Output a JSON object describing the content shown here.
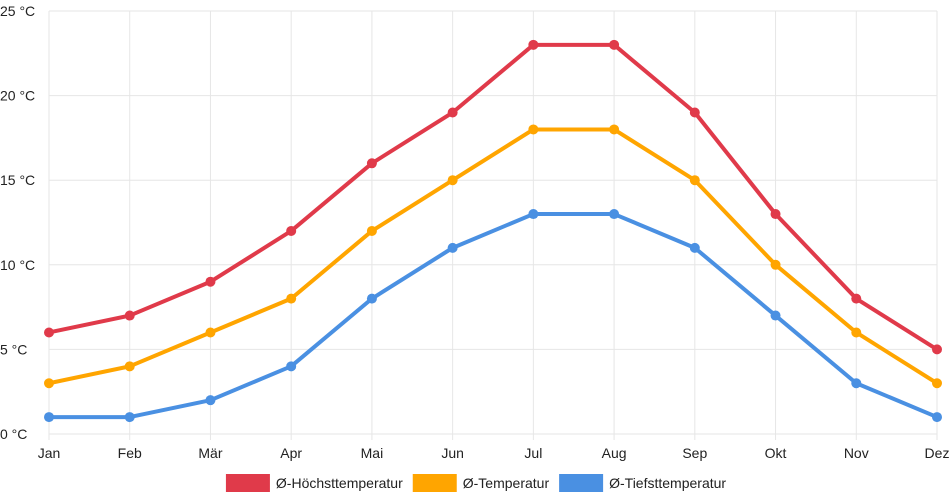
{
  "chart_data": {
    "type": "line",
    "title": "",
    "xlabel": "",
    "ylabel": "",
    "categories": [
      "Jan",
      "Feb",
      "Mär",
      "Apr",
      "Mai",
      "Jun",
      "Jul",
      "Aug",
      "Sep",
      "Okt",
      "Nov",
      "Dez"
    ],
    "ylim": [
      0,
      25
    ],
    "yticks": [
      0,
      5,
      10,
      15,
      20,
      25
    ],
    "y_unit": " °C",
    "grid": true,
    "legend_position": "bottom",
    "series": [
      {
        "name": "Ø-Höchsttemperatur",
        "color": "#e03a4a",
        "values": [
          6,
          7,
          9,
          12,
          16,
          19,
          23,
          23,
          19,
          13,
          8,
          5
        ]
      },
      {
        "name": "Ø-Temperatur",
        "color": "#ffa500",
        "values": [
          3,
          4,
          6,
          8,
          12,
          15,
          18,
          18,
          15,
          10,
          6,
          3
        ]
      },
      {
        "name": "Ø-Tiefsttemperatur",
        "color": "#4a90e2",
        "values": [
          1,
          1,
          2,
          4,
          8,
          11,
          13,
          13,
          11,
          7,
          3,
          1
        ]
      }
    ]
  }
}
